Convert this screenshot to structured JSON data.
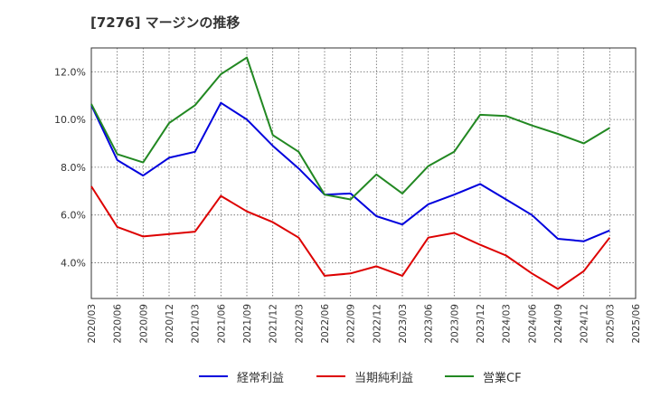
{
  "chart_data": {
    "type": "line",
    "title": "[7276]  マージンの推移",
    "x": [
      "2020/03",
      "2020/06",
      "2020/09",
      "2020/12",
      "2021/03",
      "2021/06",
      "2021/09",
      "2021/12",
      "2022/03",
      "2022/06",
      "2022/09",
      "2022/12",
      "2023/03",
      "2023/06",
      "2023/09",
      "2023/12",
      "2024/03",
      "2024/06",
      "2024/09",
      "2024/12",
      "2025/03",
      "2025/06"
    ],
    "ylim": [
      2.5,
      13.0
    ],
    "yticks": [
      4.0,
      6.0,
      8.0,
      10.0,
      12.0
    ],
    "ytick_labels": [
      "4.0%",
      "6.0%",
      "8.0%",
      "10.0%",
      "12.0%"
    ],
    "grid": true,
    "legend_position": "bottom",
    "series": [
      {
        "name": "経常利益",
        "color": "#0000dd",
        "values": [
          10.6,
          8.3,
          7.65,
          8.4,
          8.65,
          10.7,
          10.0,
          8.9,
          7.95,
          6.85,
          6.9,
          5.95,
          5.6,
          6.45,
          6.85,
          7.3,
          6.65,
          6.0,
          5.0,
          4.9,
          5.35,
          null
        ]
      },
      {
        "name": "当期純利益",
        "color": "#dd0000",
        "values": [
          7.2,
          5.5,
          5.1,
          5.2,
          5.3,
          6.8,
          6.15,
          5.7,
          5.05,
          3.45,
          3.55,
          3.85,
          3.45,
          5.05,
          5.25,
          4.75,
          4.3,
          3.55,
          2.9,
          3.65,
          5.05,
          null
        ]
      },
      {
        "name": "営業CF",
        "color": "#228822",
        "values": [
          10.65,
          8.55,
          8.2,
          9.85,
          10.6,
          11.9,
          12.6,
          9.35,
          8.65,
          6.85,
          6.65,
          7.7,
          6.9,
          8.05,
          8.65,
          10.2,
          10.15,
          9.75,
          9.4,
          9.0,
          9.65,
          null
        ]
      }
    ]
  }
}
